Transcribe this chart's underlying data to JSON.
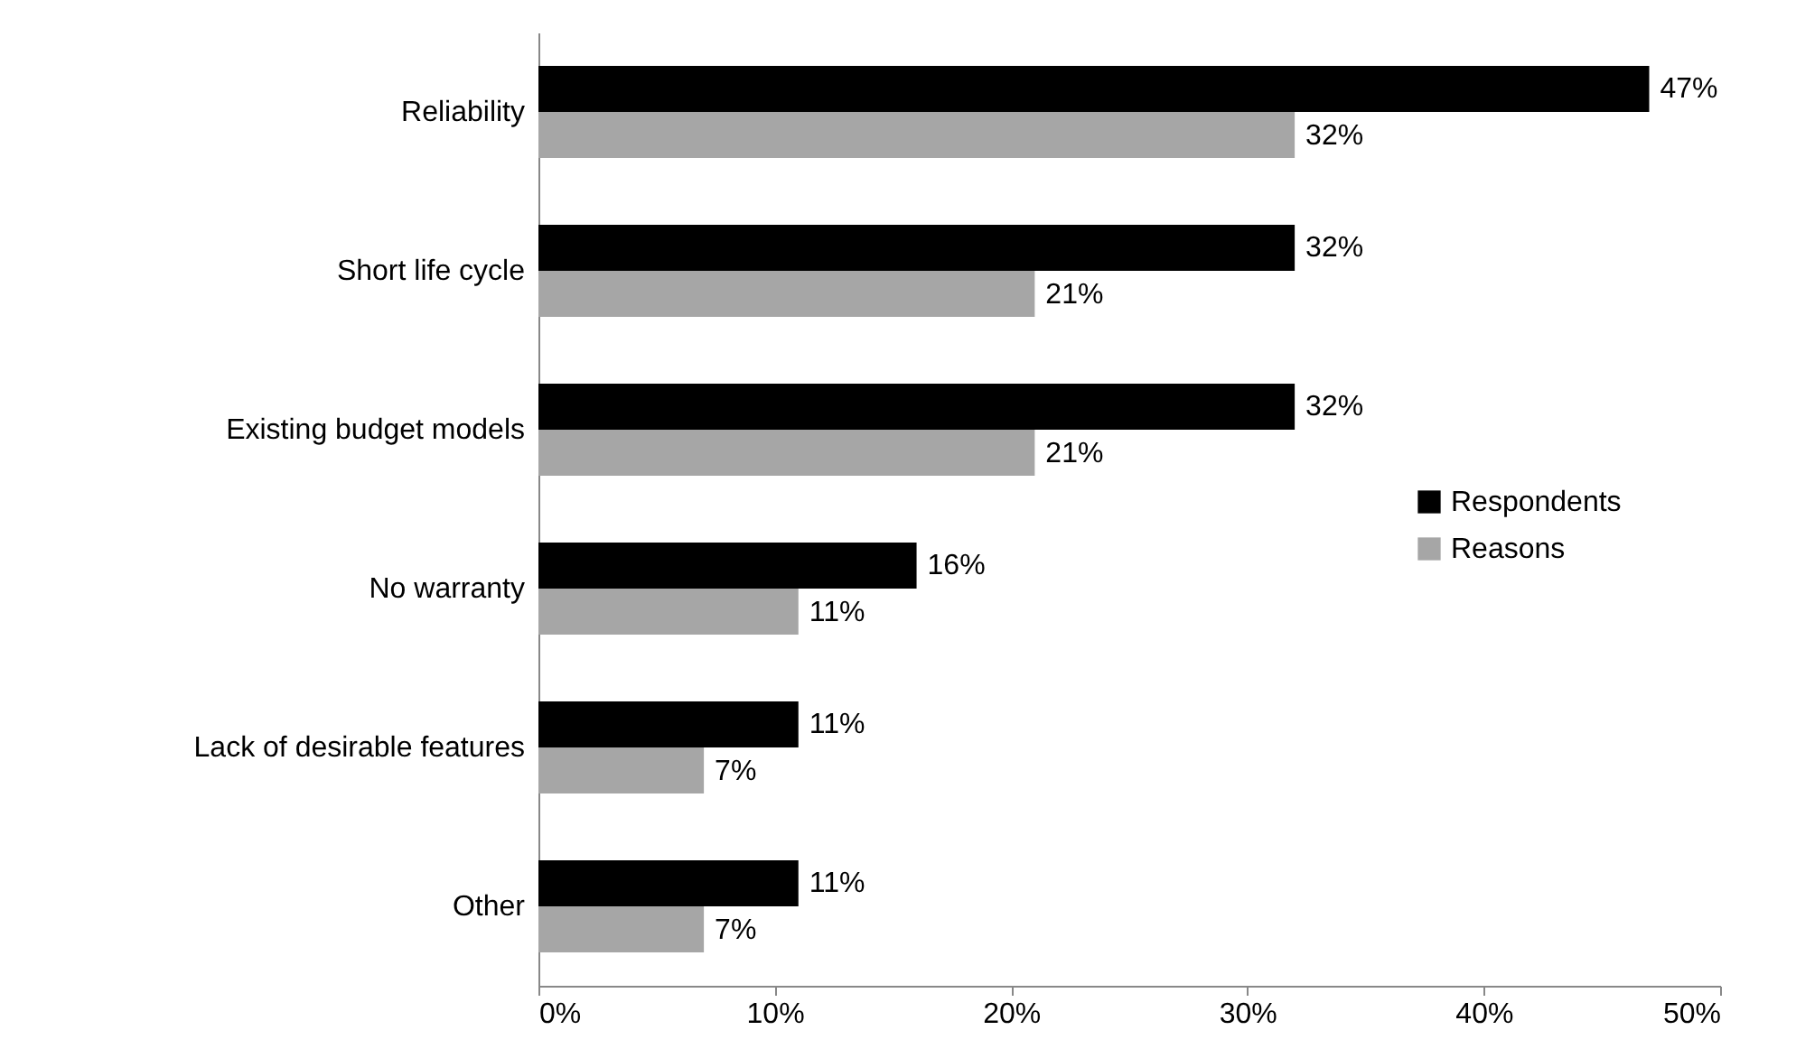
{
  "chart_data": {
    "type": "bar",
    "orientation": "horizontal",
    "categories": [
      "Reliability",
      "Short life cycle ",
      "Existing budget models",
      "No warranty",
      "Lack of desirable features",
      "Other"
    ],
    "series": [
      {
        "name": "Respondents",
        "color": "#000000",
        "values": [
          47,
          32,
          32,
          16,
          11,
          11
        ],
        "value_labels": [
          "47%",
          "32%",
          "32%",
          "16%",
          "11%",
          "11%"
        ]
      },
      {
        "name": "Reasons",
        "color": "#a6a6a6",
        "values": [
          32,
          21,
          21,
          11,
          7,
          7
        ],
        "value_labels": [
          "32%",
          "21%",
          "21%",
          "11%",
          "7%",
          "7%"
        ]
      }
    ],
    "xlim": [
      0,
      50
    ],
    "xticks": [
      {
        "value": 0,
        "label": "0%"
      },
      {
        "value": 10,
        "label": "10%"
      },
      {
        "value": 20,
        "label": "20%"
      },
      {
        "value": 30,
        "label": "30%"
      },
      {
        "value": 40,
        "label": "40%"
      },
      {
        "value": 50,
        "label": "50%"
      }
    ],
    "grid": false,
    "legend": "right"
  }
}
